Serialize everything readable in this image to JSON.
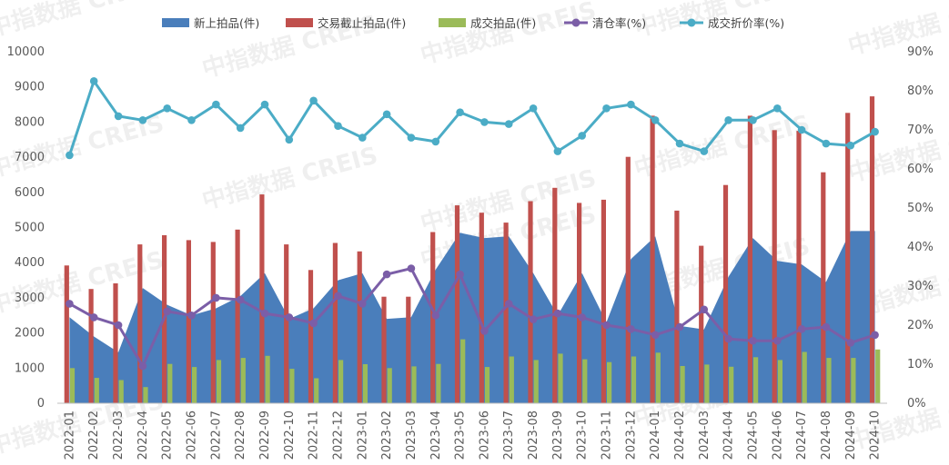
{
  "watermark": "中指数据 CREIS",
  "chart_data": {
    "type": "combo",
    "legend_position": "top",
    "grid": false,
    "categories": [
      "2022-01",
      "2022-02",
      "2022-03",
      "2022-04",
      "2022-05",
      "2022-06",
      "2022-07",
      "2022-08",
      "2022-09",
      "2022-10",
      "2022-11",
      "2022-12",
      "2023-01",
      "2023-02",
      "2023-03",
      "2023-04",
      "2023-05",
      "2023-06",
      "2023-07",
      "2023-08",
      "2023-09",
      "2023-10",
      "2023-11",
      "2023-12",
      "2024-01",
      "2024-02",
      "2024-03",
      "2024-04",
      "2024-05",
      "2024-06",
      "2024-07",
      "2024-08",
      "2024-09",
      "2024-10"
    ],
    "y_left": {
      "min": 0,
      "max": 10000,
      "ticks": [
        "0",
        "1000",
        "2000",
        "3000",
        "4000",
        "5000",
        "6000",
        "7000",
        "8000",
        "9000",
        "10000"
      ]
    },
    "y_right": {
      "min": 0,
      "max": 90,
      "ticks": [
        "0%",
        "10%",
        "20%",
        "30%",
        "40%",
        "50%",
        "60%",
        "70%",
        "80%",
        "90%"
      ]
    },
    "series": [
      {
        "name": "新上拍品(件)",
        "type": "area",
        "axis": "left",
        "color": "#4a7ebb",
        "values": [
          2450,
          1900,
          1450,
          3280,
          2800,
          2500,
          2700,
          3050,
          3700,
          2400,
          2700,
          3500,
          3700,
          2400,
          2450,
          3800,
          4850,
          4700,
          4750,
          3700,
          2500,
          3700,
          2300,
          4100,
          4750,
          2200,
          2100,
          3600,
          4700,
          4050,
          3950,
          3450,
          4900,
          4900
        ]
      },
      {
        "name": "交易截止拍品(件)",
        "type": "bar",
        "axis": "left",
        "color": "#c0504d",
        "values": [
          3920,
          3250,
          3410,
          4520,
          4780,
          4640,
          4590,
          4940,
          5940,
          4520,
          3790,
          4560,
          4320,
          3030,
          3030,
          4870,
          5630,
          5420,
          5140,
          5750,
          6130,
          5700,
          5790,
          7010,
          8180,
          5480,
          4480,
          6210,
          8180,
          7770,
          7750,
          6570,
          8260,
          8730
        ]
      },
      {
        "name": "成交拍品(件)",
        "type": "bar",
        "axis": "left",
        "color": "#9bbb59",
        "values": [
          1000,
          720,
          660,
          460,
          1120,
          1030,
          1230,
          1290,
          1350,
          980,
          710,
          1230,
          1110,
          1000,
          1050,
          1120,
          1820,
          1030,
          1330,
          1230,
          1410,
          1250,
          1170,
          1330,
          1440,
          1060,
          1100,
          1040,
          1310,
          1230,
          1460,
          1290,
          1290,
          1530
        ]
      },
      {
        "name": "清仓率(%)",
        "type": "line",
        "axis": "right",
        "color": "#7b5ea7",
        "values": [
          25.5,
          22.0,
          20.0,
          9.5,
          23.5,
          22.5,
          27.0,
          26.5,
          23.0,
          22.0,
          20.5,
          27.5,
          25.5,
          33.0,
          34.5,
          22.5,
          33.0,
          18.5,
          25.5,
          21.5,
          23.0,
          22.0,
          20.0,
          19.0,
          17.5,
          19.5,
          24.0,
          16.5,
          16.0,
          16.0,
          19.0,
          19.5,
          15.5,
          17.5
        ]
      },
      {
        "name": "成交折价率(%)",
        "type": "line",
        "axis": "right",
        "color": "#4bacc6",
        "values": [
          63.5,
          82.5,
          73.5,
          72.5,
          75.5,
          72.5,
          76.5,
          70.5,
          76.5,
          67.5,
          77.5,
          71.0,
          68.0,
          74.0,
          68.0,
          67.0,
          74.5,
          72.0,
          71.5,
          75.5,
          64.5,
          68.5,
          75.5,
          76.5,
          72.5,
          66.5,
          64.5,
          72.5,
          72.5,
          75.5,
          70.0,
          66.5,
          66.0,
          69.5
        ]
      }
    ]
  }
}
